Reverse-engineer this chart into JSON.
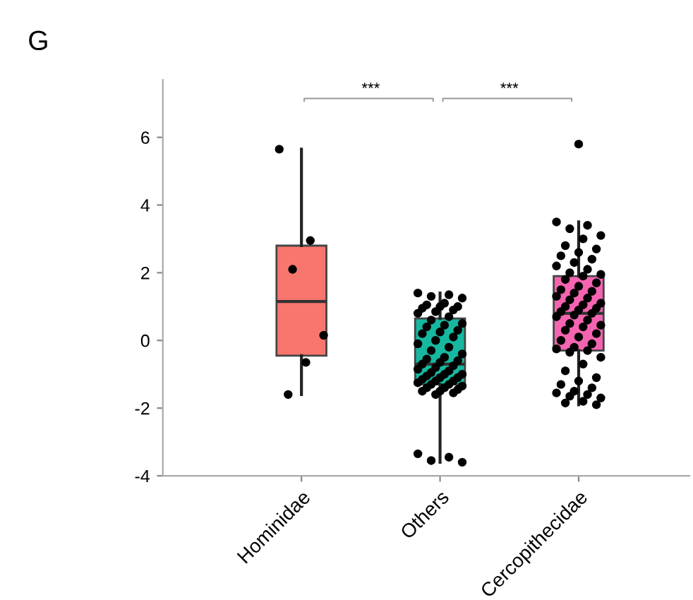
{
  "chart_data": {
    "type": "box",
    "title": "G",
    "categories": [
      "Hominidae",
      "Others",
      "Cercopithecidae"
    ],
    "colors": [
      "#f8766d",
      "#16b8a0",
      "#f564b0"
    ],
    "boxes": [
      {
        "low": -1.6,
        "q1": -0.45,
        "median": 1.15,
        "q3": 2.8,
        "high": 5.65
      },
      {
        "low": -3.6,
        "q1": -1.3,
        "median": -0.7,
        "q3": 0.65,
        "high": 1.4
      },
      {
        "low": -1.9,
        "q1": -0.3,
        "median": 0.8,
        "q3": 1.9,
        "high": 3.5,
        "outliers": [
          5.8
        ]
      }
    ],
    "series": [
      {
        "type": "scatter",
        "color": "#000000",
        "x": [
          "Hominidae",
          "Hominidae",
          "Hominidae",
          "Hominidae",
          "Hominidae",
          "Hominidae"
        ],
        "values": [
          5.65,
          2.95,
          2.1,
          0.15,
          -0.65,
          -1.6
        ]
      },
      {
        "type": "scatter",
        "color": "#000000",
        "x": [
          "Others",
          "Others",
          "Others",
          "Others",
          "Others",
          "Others",
          "Others",
          "Others",
          "Others",
          "Others",
          "Others",
          "Others",
          "Others",
          "Others",
          "Others",
          "Others",
          "Others",
          "Others",
          "Others",
          "Others",
          "Others",
          "Others",
          "Others",
          "Others",
          "Others",
          "Others",
          "Others",
          "Others",
          "Others",
          "Others",
          "Others",
          "Others",
          "Others",
          "Others",
          "Others",
          "Others",
          "Others",
          "Others",
          "Others",
          "Others",
          "Others",
          "Others",
          "Others",
          "Others",
          "Others",
          "Others",
          "Others",
          "Others",
          "Others",
          "Others",
          "Others",
          "Others",
          "Others",
          "Others",
          "Others",
          "Others",
          "Others",
          "Others",
          "Others"
        ],
        "values": [
          1.4,
          1.35,
          1.3,
          1.25,
          1.1,
          1.05,
          1.0,
          1.0,
          0.95,
          0.9,
          0.85,
          0.8,
          0.7,
          0.6,
          0.5,
          0.45,
          0.4,
          0.3,
          0.25,
          0.2,
          0.1,
          0.0,
          -0.1,
          -0.2,
          -0.3,
          -0.4,
          -0.5,
          -0.55,
          -0.6,
          -0.65,
          -0.7,
          -0.75,
          -0.8,
          -0.85,
          -0.9,
          -0.95,
          -1.0,
          -1.0,
          -1.05,
          -1.1,
          -1.1,
          -1.15,
          -1.2,
          -1.2,
          -1.25,
          -1.3,
          -1.3,
          -1.35,
          -1.4,
          -1.4,
          -1.45,
          -1.5,
          -1.5,
          -1.55,
          -1.6,
          -3.35,
          -3.45,
          -3.55,
          -3.6
        ]
      },
      {
        "type": "scatter",
        "color": "#000000",
        "x": [
          "Cercopithecidae",
          "Cercopithecidae",
          "Cercopithecidae",
          "Cercopithecidae",
          "Cercopithecidae",
          "Cercopithecidae",
          "Cercopithecidae",
          "Cercopithecidae",
          "Cercopithecidae",
          "Cercopithecidae",
          "Cercopithecidae",
          "Cercopithecidae",
          "Cercopithecidae",
          "Cercopithecidae",
          "Cercopithecidae",
          "Cercopithecidae",
          "Cercopithecidae",
          "Cercopithecidae",
          "Cercopithecidae",
          "Cercopithecidae",
          "Cercopithecidae",
          "Cercopithecidae",
          "Cercopithecidae",
          "Cercopithecidae",
          "Cercopithecidae",
          "Cercopithecidae",
          "Cercopithecidae",
          "Cercopithecidae",
          "Cercopithecidae",
          "Cercopithecidae",
          "Cercopithecidae",
          "Cercopithecidae",
          "Cercopithecidae",
          "Cercopithecidae",
          "Cercopithecidae",
          "Cercopithecidae",
          "Cercopithecidae",
          "Cercopithecidae",
          "Cercopithecidae",
          "Cercopithecidae",
          "Cercopithecidae",
          "Cercopithecidae",
          "Cercopithecidae",
          "Cercopithecidae",
          "Cercopithecidae",
          "Cercopithecidae",
          "Cercopithecidae",
          "Cercopithecidae",
          "Cercopithecidae",
          "Cercopithecidae",
          "Cercopithecidae",
          "Cercopithecidae",
          "Cercopithecidae",
          "Cercopithecidae",
          "Cercopithecidae",
          "Cercopithecidae",
          "Cercopithecidae",
          "Cercopithecidae",
          "Cercopithecidae",
          "Cercopithecidae",
          "Cercopithecidae",
          "Cercopithecidae"
        ],
        "values": [
          3.5,
          3.4,
          3.3,
          3.1,
          3.0,
          2.8,
          2.7,
          2.6,
          2.5,
          2.4,
          2.3,
          2.2,
          2.1,
          2.0,
          1.95,
          1.9,
          1.8,
          1.7,
          1.6,
          1.5,
          1.45,
          1.4,
          1.3,
          1.25,
          1.2,
          1.1,
          1.05,
          1.0,
          0.95,
          0.9,
          0.85,
          0.8,
          0.75,
          0.7,
          0.6,
          0.5,
          0.45,
          0.4,
          0.3,
          0.2,
          0.1,
          0.0,
          -0.1,
          -0.2,
          -0.25,
          -0.3,
          -0.35,
          -0.5,
          -0.7,
          -0.9,
          -1.1,
          -1.2,
          -1.3,
          -1.4,
          -1.5,
          -1.55,
          -1.6,
          -1.65,
          -1.7,
          -1.8,
          -1.85,
          -1.9
        ]
      }
    ],
    "annotations": [
      "***",
      "***"
    ],
    "ylim": [
      -4,
      7.7
    ],
    "yticks": [
      -4,
      -2,
      0,
      2,
      4,
      6
    ],
    "grid": false,
    "legend": false,
    "marker": "circle"
  }
}
